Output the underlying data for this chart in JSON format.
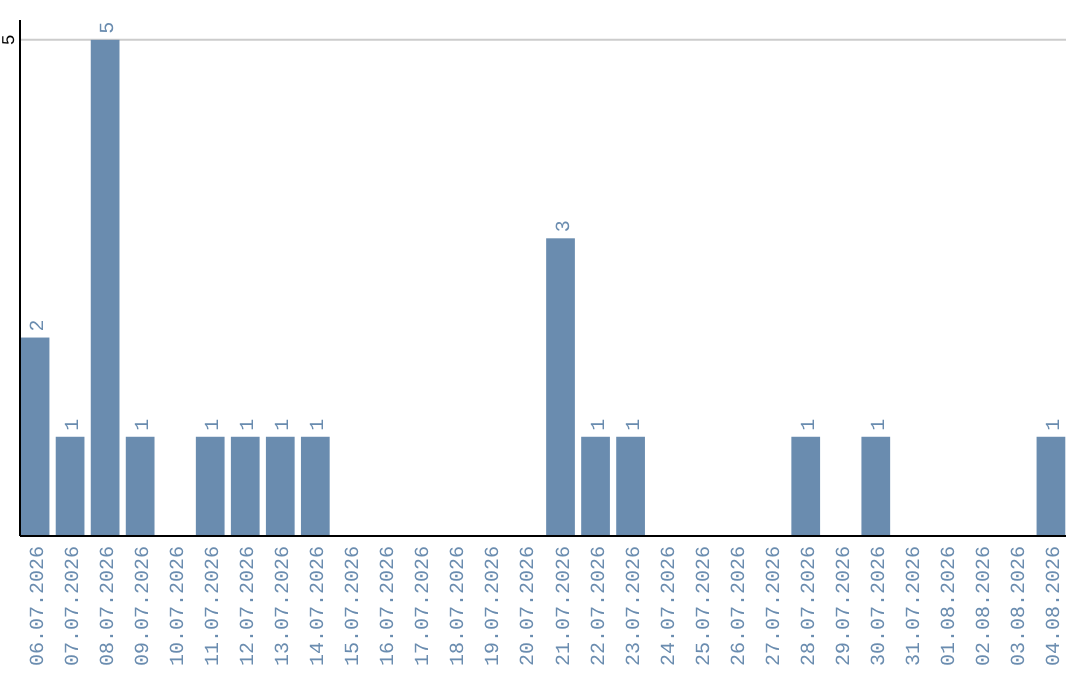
{
  "chart_data": {
    "type": "bar",
    "categories": [
      "06.07.2026",
      "07.07.2026",
      "08.07.2026",
      "09.07.2026",
      "10.07.2026",
      "11.07.2026",
      "12.07.2026",
      "13.07.2026",
      "14.07.2026",
      "15.07.2026",
      "16.07.2026",
      "17.07.2026",
      "18.07.2026",
      "19.07.2026",
      "20.07.2026",
      "21.07.2026",
      "22.07.2026",
      "23.07.2026",
      "24.07.2026",
      "25.07.2026",
      "26.07.2026",
      "27.07.2026",
      "28.07.2026",
      "29.07.2026",
      "30.07.2026",
      "31.07.2026",
      "01.08.2026",
      "02.08.2026",
      "03.08.2026",
      "04.08.2026"
    ],
    "values": [
      2,
      1,
      5,
      1,
      0,
      1,
      1,
      1,
      1,
      0,
      0,
      0,
      0,
      0,
      0,
      3,
      1,
      1,
      0,
      0,
      0,
      0,
      1,
      0,
      1,
      0,
      0,
      0,
      0,
      1
    ],
    "value_labels": [
      "2",
      "1",
      "5",
      "1",
      null,
      "1",
      "1",
      "1",
      "1",
      null,
      null,
      null,
      null,
      null,
      null,
      "3",
      "1",
      "1",
      null,
      null,
      null,
      null,
      "1",
      null,
      "1",
      null,
      null,
      null,
      null,
      "1"
    ],
    "color": "#6a8caf",
    "ylim": [
      0,
      5.2
    ],
    "yticks": [
      5
    ],
    "grid": "y"
  }
}
